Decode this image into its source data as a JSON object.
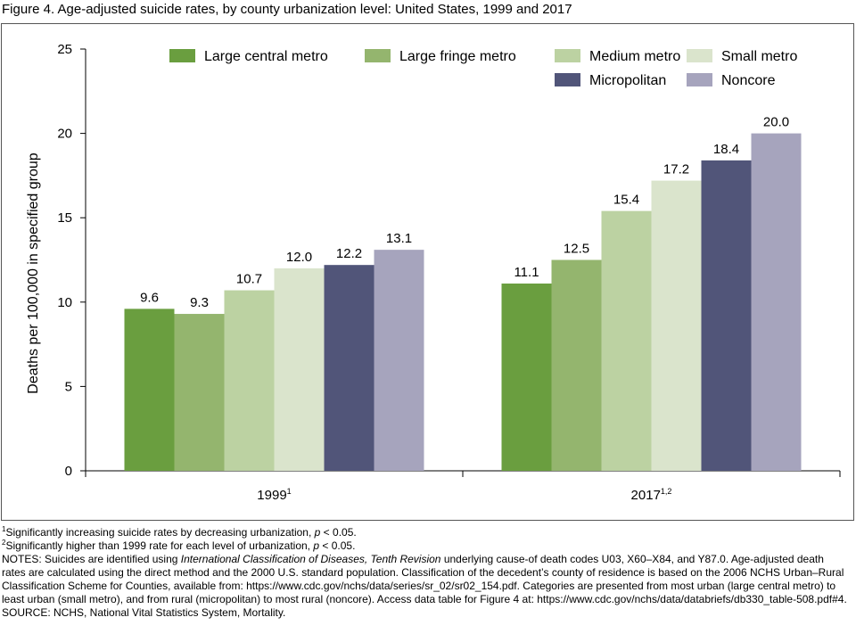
{
  "figure_title": "Figure 4. Age-adjusted suicide rates, by county urbanization level: United States, 1999 and 2017",
  "chart_data": {
    "type": "bar",
    "title": "",
    "xlabel": "",
    "ylabel": "Deaths per 100,000 in specified group",
    "ylim": [
      0,
      25
    ],
    "yticks": [
      0,
      5,
      10,
      15,
      20,
      25
    ],
    "grid": false,
    "legend_position": "top-right",
    "categories": [
      "1999",
      "2017"
    ],
    "category_superscripts": [
      "1",
      "1,2"
    ],
    "series": [
      {
        "name": "Large central metro",
        "color": "#6a9e3f",
        "values": [
          9.6,
          11.1
        ]
      },
      {
        "name": "Large fringe metro",
        "color": "#94b56e",
        "values": [
          9.3,
          12.5
        ]
      },
      {
        "name": "Medium metro",
        "color": "#bcd2a2",
        "values": [
          10.7,
          15.4
        ]
      },
      {
        "name": "Small metro",
        "color": "#dae4cc",
        "values": [
          12.0,
          17.2
        ]
      },
      {
        "name": "Micropolitan",
        "color": "#515579",
        "values": [
          12.2,
          18.4
        ]
      },
      {
        "name": "Noncore",
        "color": "#a6a4bd",
        "values": [
          13.1,
          20.0
        ]
      }
    ],
    "value_labels": [
      [
        "9.6",
        "11.1"
      ],
      [
        "9.3",
        "12.5"
      ],
      [
        "10.7",
        "15.4"
      ],
      [
        "12.0",
        "17.2"
      ],
      [
        "12.2",
        "18.4"
      ],
      [
        "13.1",
        "20.0"
      ]
    ]
  },
  "notes": {
    "fn1_mark": "1",
    "fn1_a": "Significantly increasing suicide rates by decreasing urbanization, ",
    "fn1_p": "p",
    "fn1_b": " < 0.05.",
    "fn2_mark": "2",
    "fn2_a": "Significantly higher than 1999 rate for each level of urbanization, ",
    "fn2_p": "p",
    "fn2_b": " < 0.05.",
    "notes_a": "NOTES: Suicides are identified using ",
    "notes_icd": "International Classification of Diseases, Tenth Revision",
    "notes_b": " underlying cause-of death codes U03, X60–X84, and Y87.0. Age-adjusted death rates are calculated using the direct method and the 2000 U.S. standard population. Classification of the decedent’s county of residence is based on the 2006 NCHS Urban–Rural Classification Scheme for Counties, available from: https://www.cdc.gov/nchs/data/series/sr_02/sr02_154.pdf. Categories are presented from most urban (large central metro) to least urban (small metro), and from rural (micropolitan) to most rural (noncore). Access data table for Figure 4 at: https://www.cdc.gov/nchs/data/databriefs/db330_table-508.pdf#4.",
    "source": "SOURCE: NCHS, National Vital Statistics System, Mortality."
  }
}
